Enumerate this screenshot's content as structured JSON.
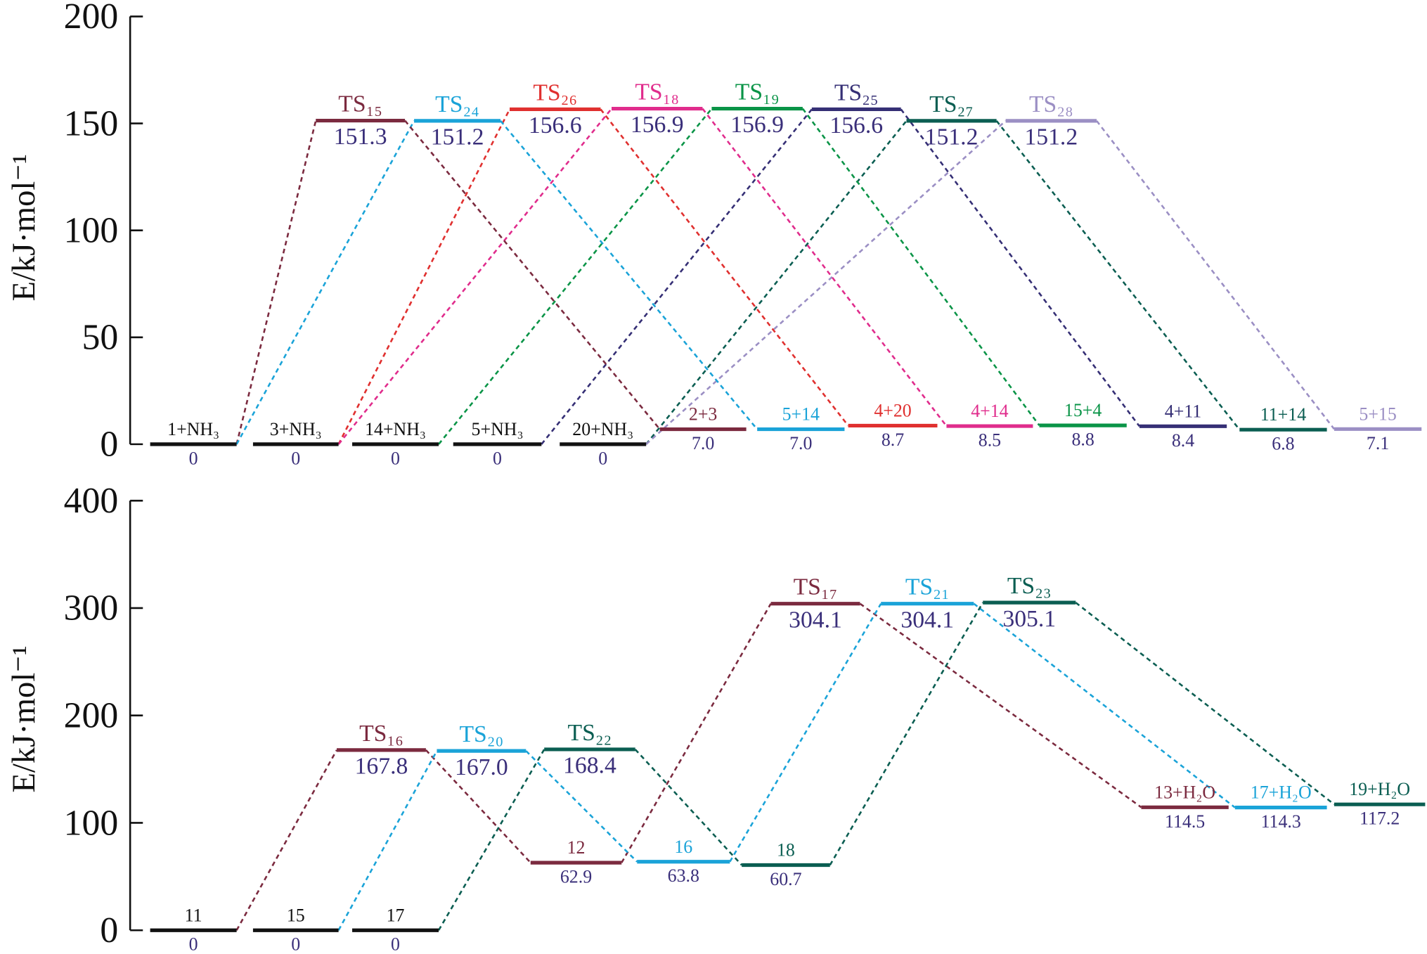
{
  "chart_data": [
    {
      "type": "energy-diagram",
      "ylabel": "E/kJ·mol⁻¹",
      "ylim": [
        0,
        200
      ],
      "yticks": [
        0,
        50,
        100,
        150,
        200
      ],
      "categories": [
        "1+NH₃",
        "3+NH₃",
        "14+NH₃",
        "5+NH₃",
        "20+NH₃",
        "TS₁₅",
        "TS₂₄",
        "TS₂₆",
        "TS₁₈",
        "TS₁₉",
        "TS₂₅",
        "TS₂₇",
        "TS₂₈",
        "2+3",
        "5+14",
        "4+20",
        "4+14",
        "15+4",
        "4+11",
        "11+14",
        "5+15"
      ],
      "values": [
        0,
        0,
        0,
        0,
        0,
        151.3,
        151.2,
        156.6,
        156.9,
        156.9,
        156.6,
        151.2,
        151.2,
        7.0,
        7.0,
        8.7,
        8.5,
        8.8,
        8.4,
        6.8,
        7.1
      ],
      "value_labels": [
        "0",
        "0",
        "0",
        "0",
        "0",
        "151.3",
        "151.2",
        "156.6",
        "156.9",
        "156.9",
        "156.6",
        "151.2",
        "151.2",
        "7.0",
        "7.0",
        "8.7",
        "8.5",
        "8.8",
        "8.4",
        "6.8",
        "7.1"
      ],
      "colors": [
        "#111111",
        "#111111",
        "#111111",
        "#111111",
        "#111111",
        "#7b2a3f",
        "#1aa3d8",
        "#e0302f",
        "#e02c8c",
        "#0a9447",
        "#352f75",
        "#0b5e52",
        "#9b8fc4",
        "#7b2a3f",
        "#1aa3d8",
        "#e0302f",
        "#e02c8c",
        "#0a9447",
        "#352f75",
        "#0b5e52",
        "#9b8fc4"
      ]
    },
    {
      "type": "energy-diagram",
      "ylabel": "E/kJ·mol⁻¹",
      "ylim": [
        0,
        400
      ],
      "yticks": [
        0,
        100,
        200,
        300,
        400
      ],
      "categories": [
        "11",
        "15",
        "17",
        "TS₁₆",
        "TS₂₀",
        "TS₂₂",
        "12",
        "16",
        "18",
        "TS₁₇",
        "TS₂₁",
        "TS₂₃",
        "13+H₂O",
        "17+H₂O",
        "19+H₂O"
      ],
      "values": [
        0,
        0,
        0,
        167.8,
        167.0,
        168.4,
        62.9,
        63.8,
        60.7,
        304.1,
        304.1,
        305.1,
        114.5,
        114.3,
        117.2
      ],
      "value_labels": [
        "0",
        "0",
        "0",
        "167.8",
        "167.0",
        "168.4",
        "62.9",
        "63.8",
        "60.7",
        "304.1",
        "304.1",
        "305.1",
        "114.5",
        "114.3",
        "117.2"
      ],
      "colors": [
        "#111111",
        "#111111",
        "#111111",
        "#7b2a3f",
        "#1aa3d8",
        "#0b5e52",
        "#7b2a3f",
        "#1aa3d8",
        "#0b5e52",
        "#7b2a3f",
        "#1aa3d8",
        "#0b5e52",
        "#7b2a3f",
        "#1aa3d8",
        "#0b5e52"
      ]
    }
  ]
}
